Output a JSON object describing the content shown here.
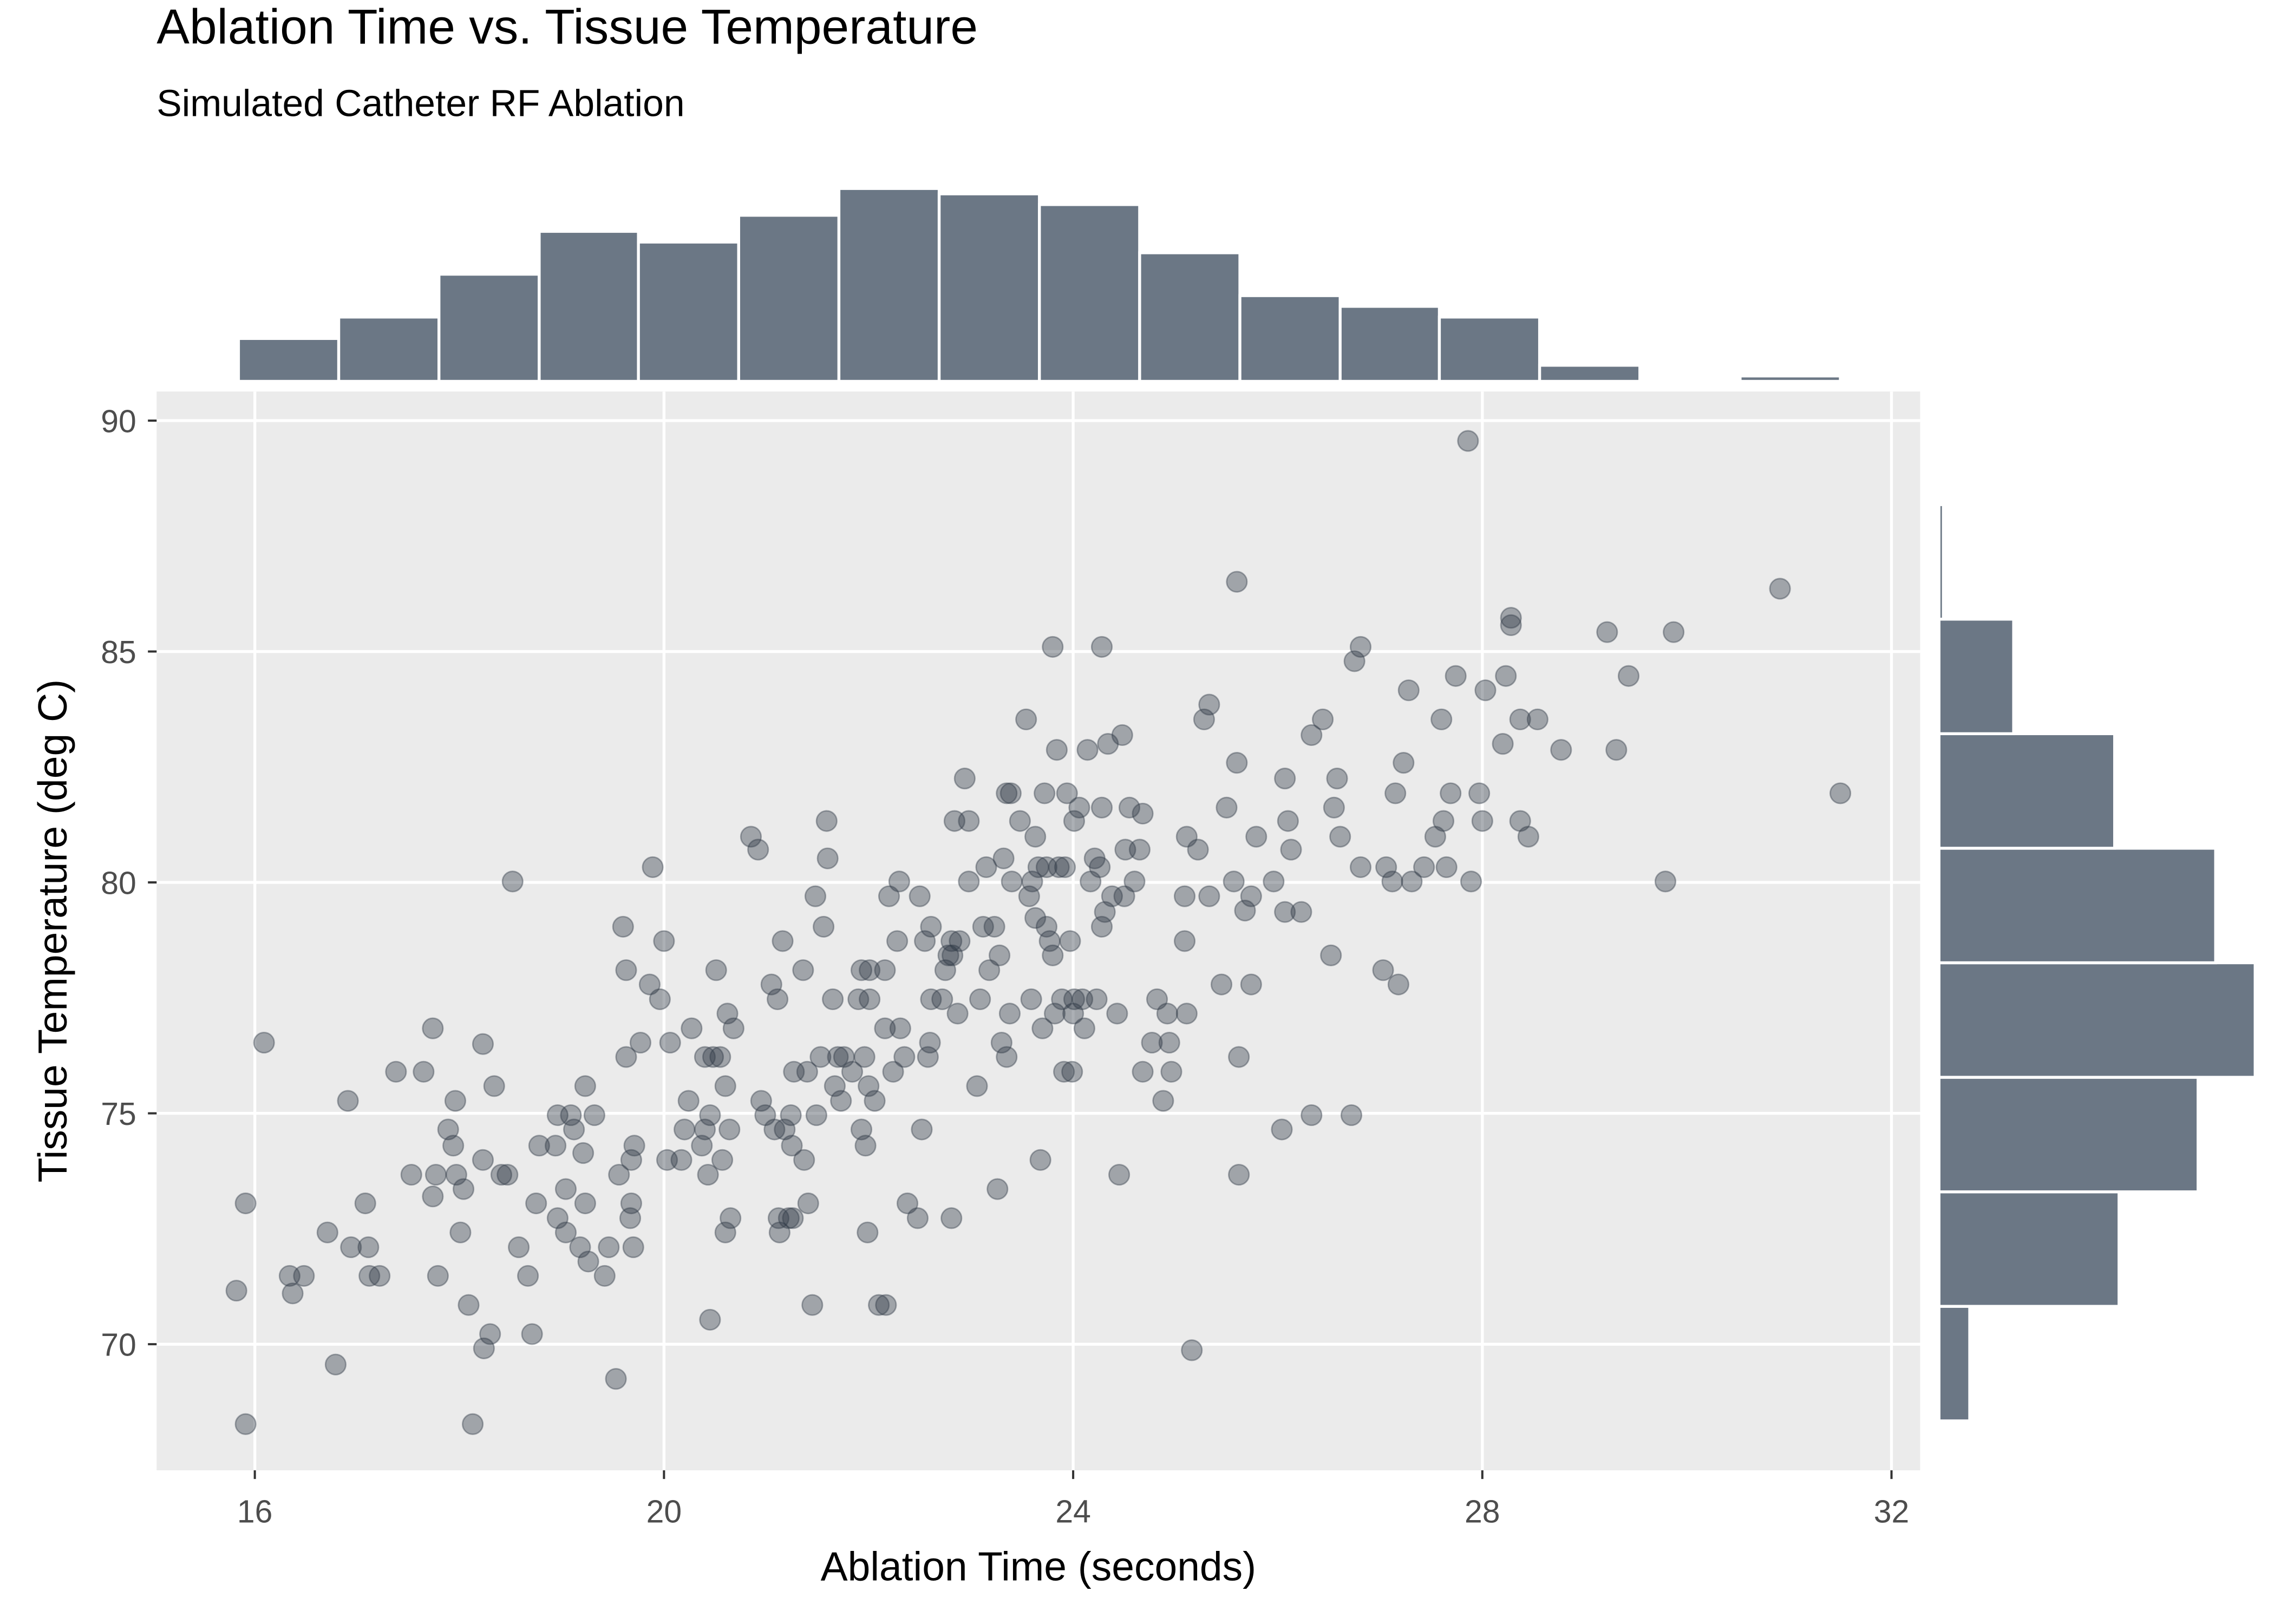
{
  "chart_data": [
    {
      "type": "scatter",
      "title": "Ablation Time vs. Tissue Temperature",
      "subtitle": "Simulated Catheter RF Ablation",
      "x_label": "Ablation Time (seconds)",
      "y_label": "Tissue Temperature (deg C)",
      "xlim": [
        15.04,
        32.28
      ],
      "ylim": [
        67.27,
        90.63
      ],
      "xticks": [
        16,
        20,
        24,
        28,
        32
      ],
      "yticks": [
        70,
        75,
        80,
        85,
        90
      ],
      "grid": true,
      "color": "#2f3a45",
      "opacity": 0.4,
      "x": [
        15.82,
        15.91,
        15.91,
        16.09,
        16.34,
        16.37,
        16.48,
        16.71,
        16.79,
        16.91,
        16.94,
        17.08,
        17.11,
        17.12,
        17.22,
        17.38,
        17.53,
        17.65,
        17.74,
        17.74,
        17.77,
        17.79,
        17.89,
        17.94,
        17.96,
        17.97,
        18.01,
        18.04,
        18.09,
        18.13,
        18.23,
        18.23,
        18.24,
        18.3,
        18.34,
        18.41,
        18.47,
        18.52,
        18.58,
        18.67,
        18.71,
        18.75,
        18.78,
        18.94,
        18.96,
        18.96,
        19.04,
        19.04,
        19.09,
        19.12,
        19.18,
        19.21,
        19.23,
        19.23,
        19.26,
        19.32,
        19.42,
        19.46,
        19.53,
        19.56,
        19.6,
        19.63,
        19.63,
        19.67,
        19.68,
        19.68,
        19.7,
        19.71,
        19.77,
        19.86,
        19.89,
        19.96,
        20.0,
        20.03,
        20.06,
        20.17,
        20.2,
        20.24,
        20.27,
        20.37,
        20.4,
        20.43,
        20.45,
        20.4,
        20.48,
        20.55,
        20.45,
        20.51,
        20.57,
        20.6,
        20.6,
        20.62,
        20.64,
        20.65,
        20.68,
        20.85,
        20.92,
        20.95,
        20.99,
        21.05,
        21.08,
        21.11,
        21.12,
        21.13,
        21.16,
        21.18,
        21.22,
        21.24,
        21.25,
        21.26,
        21.27,
        21.36,
        21.37,
        21.4,
        21.41,
        21.45,
        21.48,
        21.49,
        21.53,
        21.56,
        21.59,
        21.6,
        21.65,
        21.67,
        21.7,
        21.73,
        21.76,
        21.84,
        21.9,
        21.93,
        21.93,
        21.96,
        21.97,
        21.99,
        22.0,
        22.01,
        22.01,
        22.06,
        22.1,
        22.16,
        22.16,
        22.17,
        22.2,
        22.24,
        22.28,
        22.3,
        22.31,
        22.35,
        22.38,
        22.48,
        22.5,
        22.52,
        22.55,
        22.58,
        22.6,
        22.61,
        22.61,
        22.72,
        22.75,
        22.78,
        22.81,
        22.81,
        22.82,
        22.84,
        22.87,
        22.89,
        22.94,
        22.98,
        22.98,
        23.06,
        23.09,
        23.12,
        23.15,
        23.18,
        23.23,
        23.26,
        23.28,
        23.3,
        23.32,
        23.35,
        23.35,
        23.38,
        23.39,
        23.4,
        23.48,
        23.54,
        23.57,
        23.59,
        23.6,
        23.63,
        23.63,
        23.66,
        23.68,
        23.7,
        23.72,
        23.74,
        23.74,
        23.77,
        23.8,
        23.8,
        23.82,
        23.84,
        23.86,
        23.89,
        23.91,
        23.92,
        23.94,
        23.97,
        23.99,
        24.0,
        24.01,
        24.01,
        24.06,
        24.09,
        24.11,
        24.14,
        24.17,
        24.21,
        24.23,
        24.26,
        24.28,
        24.28,
        24.28,
        24.31,
        24.34,
        24.38,
        24.43,
        24.45,
        24.48,
        24.5,
        24.51,
        24.55,
        24.6,
        24.65,
        24.68,
        24.68,
        24.77,
        24.82,
        24.88,
        24.92,
        24.94,
        24.96,
        25.09,
        25.09,
        25.11,
        25.11,
        25.16,
        25.22,
        25.28,
        25.33,
        25.33,
        25.45,
        25.5,
        25.57,
        25.6,
        25.6,
        25.62,
        25.62,
        25.68,
        25.74,
        25.74,
        25.79,
        25.96,
        26.04,
        26.07,
        26.07,
        26.1,
        26.13,
        26.23,
        26.33,
        26.33,
        26.44,
        26.52,
        26.55,
        26.58,
        26.61,
        26.72,
        26.75,
        26.81,
        26.81,
        27.03,
        27.06,
        27.12,
        27.15,
        27.18,
        27.23,
        27.28,
        27.31,
        27.43,
        27.54,
        27.6,
        27.62,
        27.65,
        27.69,
        27.74,
        27.86,
        27.89,
        27.97,
        28.0,
        28.03,
        28.2,
        28.23,
        28.28,
        28.28,
        28.37,
        28.37,
        28.45,
        28.54,
        28.77,
        29.22,
        29.31,
        29.43,
        29.79,
        29.87,
        30.91,
        31.5
      ],
      "y": [
        71.16,
        73.05,
        68.27,
        76.53,
        71.48,
        71.1,
        71.48,
        72.42,
        69.56,
        75.27,
        72.1,
        73.05,
        72.1,
        71.48,
        71.48,
        75.9,
        73.67,
        75.9,
        76.84,
        73.2,
        73.67,
        71.48,
        74.65,
        74.3,
        75.27,
        73.67,
        72.42,
        73.36,
        70.85,
        68.27,
        76.5,
        73.99,
        69.91,
        70.22,
        75.59,
        73.67,
        73.67,
        80.02,
        72.1,
        71.48,
        70.22,
        73.05,
        74.3,
        74.3,
        72.73,
        74.96,
        73.36,
        72.42,
        74.96,
        74.65,
        72.1,
        74.14,
        75.59,
        73.05,
        71.79,
        74.96,
        71.48,
        72.1,
        69.25,
        73.67,
        79.04,
        76.22,
        78.1,
        72.73,
        73.05,
        73.99,
        72.1,
        74.3,
        76.53,
        77.79,
        80.33,
        77.47,
        78.73,
        73.99,
        76.53,
        73.99,
        74.65,
        75.27,
        76.84,
        74.3,
        74.65,
        73.67,
        74.96,
        76.22,
        76.22,
        76.22,
        70.53,
        78.1,
        73.99,
        75.59,
        72.42,
        77.16,
        74.65,
        72.73,
        76.84,
        80.99,
        80.71,
        75.27,
        74.96,
        77.79,
        74.65,
        77.47,
        72.73,
        72.42,
        78.73,
        74.65,
        72.73,
        74.96,
        74.3,
        72.73,
        75.9,
        78.1,
        73.99,
        75.9,
        73.05,
        70.85,
        79.7,
        74.96,
        76.22,
        79.04,
        81.33,
        80.52,
        77.47,
        75.59,
        76.22,
        75.27,
        76.22,
        75.9,
        77.47,
        74.65,
        78.1,
        76.22,
        74.3,
        72.42,
        75.59,
        77.47,
        78.1,
        75.27,
        70.85,
        78.1,
        76.84,
        70.85,
        79.7,
        75.9,
        78.73,
        80.02,
        76.84,
        76.22,
        73.05,
        72.73,
        79.7,
        74.65,
        78.73,
        76.22,
        76.53,
        77.47,
        79.04,
        77.47,
        78.1,
        78.42,
        72.73,
        78.73,
        78.42,
        81.33,
        77.16,
        78.73,
        82.25,
        80.02,
        81.33,
        75.59,
        77.47,
        79.04,
        80.33,
        78.1,
        79.04,
        73.36,
        78.42,
        76.53,
        80.52,
        81.93,
        76.22,
        77.16,
        81.93,
        80.02,
        81.33,
        83.53,
        79.7,
        77.47,
        80.02,
        80.99,
        79.23,
        80.33,
        73.99,
        76.84,
        81.93,
        80.33,
        79.04,
        78.73,
        85.1,
        78.42,
        77.16,
        82.87,
        80.33,
        77.47,
        75.9,
        80.33,
        81.93,
        78.73,
        75.9,
        77.16,
        77.47,
        81.33,
        81.62,
        77.47,
        76.84,
        82.87,
        80.02,
        80.52,
        77.47,
        80.33,
        79.04,
        85.1,
        81.62,
        79.36,
        83.0,
        79.7,
        77.16,
        73.67,
        83.19,
        79.7,
        80.71,
        81.62,
        80.02,
        80.71,
        81.49,
        75.9,
        76.53,
        77.47,
        75.27,
        77.16,
        76.53,
        75.9,
        78.73,
        79.7,
        77.16,
        80.99,
        69.87,
        80.71,
        83.53,
        83.85,
        79.7,
        77.79,
        81.62,
        80.02,
        82.59,
        86.51,
        73.67,
        76.22,
        79.39,
        77.79,
        79.7,
        80.99,
        80.02,
        74.65,
        82.25,
        79.36,
        81.33,
        80.71,
        79.36,
        74.96,
        83.19,
        83.53,
        78.42,
        81.62,
        82.25,
        80.99,
        74.96,
        84.79,
        85.1,
        80.33,
        78.1,
        80.33,
        80.02,
        81.93,
        77.79,
        82.59,
        84.16,
        80.02,
        80.33,
        80.99,
        83.53,
        81.33,
        80.33,
        81.93,
        84.47,
        89.56,
        80.02,
        81.93,
        81.33,
        84.16,
        83.0,
        84.47,
        85.73,
        85.57,
        83.53,
        81.33,
        80.99,
        83.53,
        82.87,
        85.42,
        82.87,
        84.47,
        80.02,
        85.42,
        86.36,
        81.93
      ]
    },
    {
      "type": "histogram",
      "orientation": "vertical",
      "color": "#6b7785",
      "bins": [
        15.84,
        16.82,
        17.8,
        18.78,
        19.75,
        20.73,
        21.71,
        22.69,
        23.67,
        24.65,
        25.63,
        26.61,
        27.58,
        28.56,
        29.54,
        30.52,
        31.5
      ],
      "values": [
        8,
        12,
        20,
        28,
        26,
        31,
        36,
        35,
        33,
        24,
        16,
        14,
        12,
        3,
        0,
        1
      ]
    },
    {
      "type": "histogram",
      "orientation": "horizontal",
      "color": "#6b7785",
      "bins": [
        68.34,
        70.82,
        73.3,
        75.78,
        78.26,
        80.74,
        83.22,
        85.7,
        88.18
      ],
      "values": [
        7,
        41,
        59,
        72,
        63,
        40,
        17,
        1
      ]
    }
  ]
}
